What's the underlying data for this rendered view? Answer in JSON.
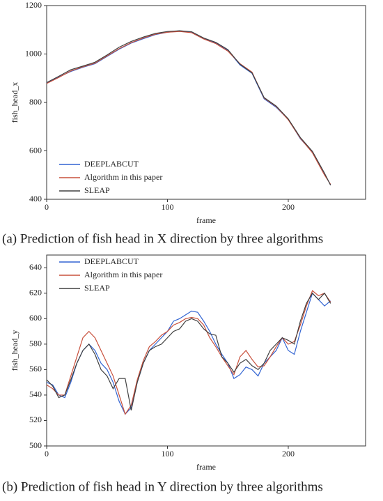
{
  "chart_data": [
    {
      "type": "line",
      "xlabel": "frame",
      "ylabel": "fish_head_x",
      "caption": "(a) Prediction of fish head in X direction by three algorithms",
      "x": [
        0,
        10,
        20,
        30,
        40,
        50,
        60,
        70,
        80,
        90,
        100,
        110,
        120,
        130,
        140,
        150,
        160,
        170,
        180,
        190,
        200,
        210,
        220,
        230,
        235
      ],
      "series": [
        {
          "name": "DEEPLABCUT",
          "color": "#3264d2",
          "values": [
            880,
            905,
            928,
            945,
            960,
            990,
            1020,
            1045,
            1063,
            1080,
            1090,
            1095,
            1090,
            1065,
            1045,
            1015,
            955,
            920,
            815,
            780,
            730,
            650,
            595,
            505,
            460
          ]
        },
        {
          "name": "Algorithm in this paper",
          "color": "#c8503c",
          "values": [
            878,
            903,
            930,
            947,
            962,
            992,
            1022,
            1047,
            1066,
            1082,
            1090,
            1093,
            1088,
            1062,
            1043,
            1012,
            960,
            925,
            818,
            783,
            728,
            652,
            592,
            500,
            462
          ]
        },
        {
          "name": "SLEAP",
          "color": "#404040",
          "values": [
            882,
            908,
            935,
            950,
            966,
            996,
            1028,
            1052,
            1070,
            1085,
            1093,
            1096,
            1092,
            1066,
            1048,
            1018,
            958,
            922,
            820,
            785,
            732,
            655,
            598,
            508,
            458
          ]
        }
      ],
      "xlim": [
        0,
        264
      ],
      "xticks": [
        0,
        100,
        200
      ],
      "ylim": [
        400,
        1200
      ],
      "yticks": [
        400,
        600,
        800,
        1000,
        1200
      ],
      "legend": "lower left"
    },
    {
      "type": "line",
      "xlabel": "frame",
      "ylabel": "fish_head_y",
      "caption": "(b) Prediction of fish head in Y direction by three algorithms",
      "x": [
        0,
        5,
        10,
        15,
        20,
        25,
        30,
        35,
        40,
        45,
        50,
        55,
        60,
        65,
        70,
        75,
        80,
        85,
        90,
        95,
        100,
        105,
        110,
        115,
        120,
        125,
        130,
        135,
        140,
        145,
        150,
        155,
        160,
        165,
        170,
        175,
        180,
        185,
        190,
        195,
        200,
        205,
        210,
        215,
        220,
        225,
        230,
        235
      ],
      "series": [
        {
          "name": "DEEPLABCUT",
          "color": "#3264d2",
          "values": [
            550,
            548,
            540,
            538,
            550,
            565,
            575,
            580,
            575,
            565,
            560,
            550,
            535,
            525,
            530,
            550,
            565,
            575,
            580,
            585,
            590,
            598,
            600,
            603,
            606,
            605,
            598,
            590,
            580,
            572,
            565,
            553,
            556,
            562,
            560,
            555,
            565,
            570,
            575,
            585,
            575,
            572,
            590,
            605,
            620,
            615,
            610,
            614
          ]
        },
        {
          "name": "Algorithm in this paper",
          "color": "#c8503c",
          "values": [
            548,
            545,
            540,
            540,
            555,
            570,
            585,
            590,
            585,
            575,
            565,
            555,
            540,
            525,
            532,
            552,
            567,
            578,
            582,
            587,
            590,
            595,
            597,
            600,
            601,
            600,
            595,
            585,
            578,
            570,
            563,
            556,
            570,
            575,
            568,
            562,
            563,
            570,
            578,
            585,
            580,
            582,
            595,
            610,
            622,
            618,
            620,
            613
          ]
        },
        {
          "name": "SLEAP",
          "color": "#404040",
          "values": [
            552,
            547,
            538,
            540,
            552,
            565,
            575,
            580,
            572,
            560,
            555,
            545,
            553,
            553,
            528,
            550,
            565,
            575,
            578,
            580,
            585,
            590,
            592,
            598,
            600,
            598,
            592,
            588,
            587,
            570,
            565,
            558,
            565,
            568,
            563,
            560,
            565,
            575,
            580,
            585,
            583,
            580,
            598,
            612,
            620,
            615,
            620,
            612
          ]
        }
      ],
      "xlim": [
        0,
        264
      ],
      "xticks": [
        0,
        100,
        200
      ],
      "ylim": [
        500,
        650
      ],
      "yticks": [
        500,
        520,
        540,
        560,
        580,
        600,
        620,
        640
      ],
      "legend": "upper left"
    }
  ]
}
